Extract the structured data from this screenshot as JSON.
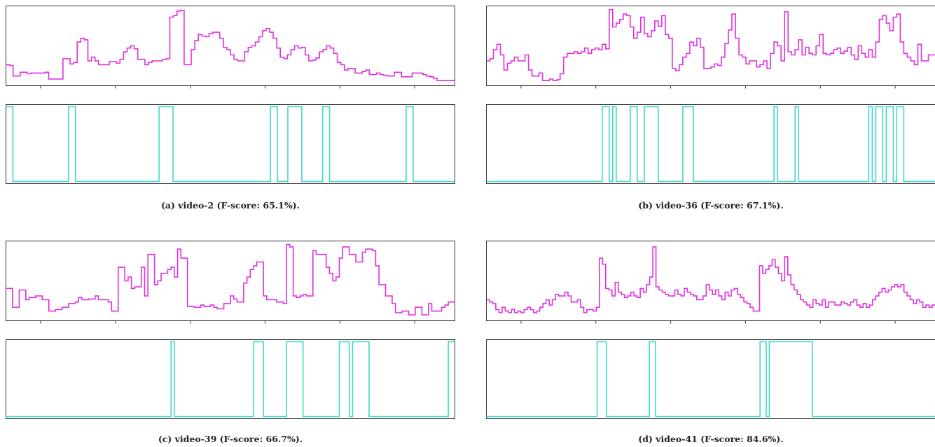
{
  "colors": {
    "score": "#e030e0",
    "summary": "#40d8c8",
    "axis": "#333333"
  },
  "chart_data": [
    {
      "type": "line",
      "caption": "(a) video-2 (F-score: 65.1%).",
      "series": [
        {
          "values": [
            0.25,
            0.24,
            0.1,
            0.1,
            0.15,
            0.15,
            0.13,
            0.14,
            0.14,
            0.14,
            0.14,
            0.15,
            0.06,
            0.06,
            0.06,
            0.06,
            0.33,
            0.33,
            0.26,
            0.28,
            0.55,
            0.6,
            0.58,
            0.3,
            0.35,
            0.3,
            0.25,
            0.25,
            0.25,
            0.29,
            0.29,
            0.27,
            0.32,
            0.42,
            0.47,
            0.5,
            0.46,
            0.32,
            0.32,
            0.25,
            0.28,
            0.3,
            0.3,
            0.3,
            0.32,
            0.33,
            0.88,
            0.9,
            0.96,
            0.97,
            0.25,
            0.25,
            0.45,
            0.57,
            0.65,
            0.63,
            0.62,
            0.66,
            0.68,
            0.68,
            0.6,
            0.48,
            0.45,
            0.38,
            0.32,
            0.3,
            0.3,
            0.42,
            0.48,
            0.5,
            0.55,
            0.62,
            0.7,
            0.73,
            0.68,
            0.6,
            0.47,
            0.35,
            0.33,
            0.38,
            0.45,
            0.5,
            0.47,
            0.48,
            0.38,
            0.3,
            0.31,
            0.34,
            0.42,
            0.45,
            0.5,
            0.47,
            0.4,
            0.28,
            0.25,
            0.18,
            0.2,
            0.2,
            0.14,
            0.14,
            0.16,
            0.18,
            0.12,
            0.12,
            0.14,
            0.12,
            0.11,
            0.1,
            0.1,
            0.15,
            0.15,
            0.09,
            0.09,
            0.09,
            0.14,
            0.14,
            0.14,
            0.12,
            0.1,
            0.09,
            0.07,
            0.04,
            0.04,
            0.04,
            0.04,
            0.04
          ]
        },
        {
          "values": [
            1,
            1,
            0,
            0,
            0,
            0,
            0,
            0,
            0,
            0,
            0,
            0,
            0,
            0,
            0,
            0,
            0,
            0,
            1,
            1,
            0,
            0,
            0,
            0,
            0,
            0,
            0,
            0,
            0,
            0,
            0,
            0,
            0,
            0,
            0,
            0,
            0,
            0,
            0,
            0,
            0,
            0,
            0,
            0,
            1,
            1,
            1,
            1,
            0,
            0,
            0,
            0,
            0,
            0,
            0,
            0,
            0,
            0,
            0,
            0,
            0,
            0,
            0,
            0,
            0,
            0,
            0,
            0,
            0,
            0,
            0,
            0,
            0,
            0,
            0,
            0,
            1,
            1,
            0,
            0,
            0,
            1,
            1,
            1,
            1,
            0,
            0,
            0,
            0,
            0,
            0,
            1,
            1,
            0,
            0,
            0,
            0,
            0,
            0,
            0,
            0,
            0,
            0,
            0,
            0,
            0,
            0,
            0,
            0,
            0,
            0,
            0,
            0,
            0,
            0,
            1,
            1,
            0,
            0,
            0,
            0,
            0,
            0,
            0,
            0,
            0,
            0,
            0,
            0
          ]
        }
      ]
    },
    {
      "type": "line",
      "caption": "(b) video-36 (F-score: 67.1%).",
      "series": [
        {
          "values": [
            0.3,
            0.33,
            0.45,
            0.52,
            0.38,
            0.18,
            0.27,
            0.3,
            0.35,
            0.3,
            0.3,
            0.38,
            0.18,
            0.1,
            0.1,
            0.14,
            0.04,
            0.04,
            0.06,
            0.04,
            0.05,
            0.13,
            0.35,
            0.4,
            0.4,
            0.42,
            0.4,
            0.42,
            0.47,
            0.4,
            0.45,
            0.47,
            0.45,
            0.52,
            0.46,
            0.98,
            0.75,
            0.8,
            0.85,
            0.92,
            0.9,
            0.75,
            0.6,
            0.68,
            0.88,
            0.66,
            0.62,
            0.7,
            0.83,
            0.76,
            0.9,
            0.65,
            0.6,
            0.2,
            0.17,
            0.25,
            0.35,
            0.4,
            0.55,
            0.5,
            0.6,
            0.48,
            0.2,
            0.2,
            0.22,
            0.26,
            0.24,
            0.35,
            0.53,
            0.71,
            0.92,
            0.6,
            0.38,
            0.35,
            0.26,
            0.3,
            0.3,
            0.22,
            0.25,
            0.3,
            0.2,
            0.4,
            0.55,
            0.5,
            0.3,
            0.95,
            0.42,
            0.38,
            0.45,
            0.58,
            0.38,
            0.48,
            0.4,
            0.38,
            0.5,
            0.65,
            0.4,
            0.38,
            0.4,
            0.45,
            0.47,
            0.4,
            0.43,
            0.48,
            0.38,
            0.32,
            0.5,
            0.4,
            0.35,
            0.45,
            0.35,
            0.55,
            0.85,
            0.9,
            0.8,
            0.7,
            0.88,
            0.92,
            0.55,
            0.4,
            0.35,
            0.3,
            0.25,
            0.52,
            0.3,
            0.3,
            0.38,
            0.38
          ]
        },
        {
          "values": [
            0,
            0,
            0,
            0,
            0,
            0,
            0,
            0,
            0,
            0,
            0,
            0,
            0,
            0,
            0,
            0,
            0,
            0,
            0,
            0,
            0,
            0,
            0,
            0,
            0,
            0,
            0,
            0,
            0,
            0,
            0,
            0,
            0,
            1,
            1,
            0,
            1,
            0,
            0,
            0,
            0,
            1,
            1,
            0,
            0,
            1,
            1,
            1,
            1,
            0,
            0,
            0,
            0,
            0,
            0,
            0,
            1,
            1,
            1,
            0,
            0,
            0,
            0,
            0,
            0,
            0,
            0,
            0,
            0,
            0,
            0,
            0,
            0,
            0,
            0,
            0,
            0,
            0,
            0,
            0,
            0,
            0,
            1,
            0,
            0,
            0,
            0,
            0,
            1,
            0,
            0,
            0,
            0,
            0,
            0,
            0,
            0,
            0,
            0,
            0,
            0,
            0,
            0,
            0,
            0,
            0,
            0,
            0,
            0,
            1,
            0,
            1,
            1,
            0,
            1,
            1,
            0,
            1,
            1,
            0,
            0,
            0,
            0,
            0,
            0,
            0,
            0,
            0
          ]
        }
      ]
    },
    {
      "type": "line",
      "caption": "(c) video-39 (F-score: 66.7%).",
      "series": [
        {
          "values": [
            0.4,
            0.4,
            0.15,
            0.15,
            0.38,
            0.38,
            0.25,
            0.28,
            0.28,
            0.3,
            0.3,
            0.25,
            0.25,
            0.1,
            0.1,
            0.12,
            0.12,
            0.15,
            0.15,
            0.2,
            0.2,
            0.22,
            0.28,
            0.25,
            0.25,
            0.26,
            0.26,
            0.3,
            0.25,
            0.25,
            0.25,
            0.22,
            0.1,
            0.1,
            0.68,
            0.68,
            0.5,
            0.55,
            0.4,
            0.42,
            0.42,
            0.68,
            0.3,
            0.85,
            0.85,
            0.45,
            0.5,
            0.6,
            0.6,
            0.65,
            0.68,
            0.55,
            0.92,
            0.8,
            0.8,
            0.16,
            0.16,
            0.15,
            0.15,
            0.18,
            0.16,
            0.16,
            0.18,
            0.15,
            0.13,
            0.13,
            0.2,
            0.2,
            0.3,
            0.26,
            0.22,
            0.22,
            0.47,
            0.55,
            0.65,
            0.7,
            0.75,
            0.75,
            0.3,
            0.25,
            0.25,
            0.25,
            0.22,
            0.22,
            0.2,
            0.98,
            0.95,
            0.3,
            0.28,
            0.3,
            0.32,
            0.3,
            0.3,
            0.9,
            0.85,
            0.85,
            0.85,
            0.68,
            0.6,
            0.5,
            0.55,
            0.8,
            0.95,
            0.95,
            0.85,
            0.85,
            0.75,
            0.75,
            0.88,
            0.92,
            0.92,
            0.9,
            0.7,
            0.45,
            0.45,
            0.3,
            0.3,
            0.2,
            0.08,
            0.08,
            0.1,
            0.1,
            0.05,
            0.05,
            0.15,
            0.15,
            0.05,
            0.05,
            0.2,
            0.1,
            0.1,
            0.1,
            0.15,
            0.18,
            0.22,
            0.22
          ]
        },
        {
          "values": [
            0,
            0,
            0,
            0,
            0,
            0,
            0,
            0,
            0,
            0,
            0,
            0,
            0,
            0,
            0,
            0,
            0,
            0,
            0,
            0,
            0,
            0,
            0,
            0,
            0,
            0,
            0,
            0,
            0,
            0,
            0,
            0,
            0,
            0,
            0,
            0,
            0,
            0,
            0,
            0,
            0,
            0,
            0,
            0,
            0,
            0,
            0,
            0,
            0,
            0,
            1,
            0,
            0,
            0,
            0,
            0,
            0,
            0,
            0,
            0,
            0,
            0,
            0,
            0,
            0,
            0,
            0,
            0,
            0,
            0,
            0,
            0,
            0,
            0,
            0,
            1,
            1,
            1,
            0,
            0,
            0,
            0,
            0,
            0,
            0,
            1,
            1,
            1,
            1,
            1,
            0,
            0,
            0,
            0,
            0,
            0,
            0,
            0,
            0,
            0,
            0,
            1,
            1,
            1,
            0,
            1,
            1,
            1,
            1,
            1,
            0,
            0,
            0,
            0,
            0,
            0,
            0,
            0,
            0,
            0,
            0,
            0,
            0,
            0,
            0,
            0,
            0,
            0,
            0,
            0,
            0,
            0,
            0,
            0,
            1,
            1
          ]
        }
      ]
    },
    {
      "type": "line",
      "caption": "(d) video-41 (F-score: 84.6%).",
      "series": [
        {
          "values": [
            0.25,
            0.22,
            0.2,
            0.12,
            0.08,
            0.15,
            0.1,
            0.08,
            0.12,
            0.08,
            0.1,
            0.08,
            0.12,
            0.15,
            0.12,
            0.08,
            0.1,
            0.15,
            0.2,
            0.25,
            0.18,
            0.25,
            0.32,
            0.3,
            0.3,
            0.35,
            0.3,
            0.22,
            0.22,
            0.25,
            0.15,
            0.08,
            0.12,
            0.12,
            0.1,
            0.15,
            0.8,
            0.72,
            0.4,
            0.38,
            0.3,
            0.48,
            0.35,
            0.32,
            0.28,
            0.3,
            0.35,
            0.3,
            0.28,
            0.4,
            0.35,
            0.45,
            0.55,
            0.95,
            0.42,
            0.38,
            0.35,
            0.32,
            0.3,
            0.3,
            0.38,
            0.32,
            0.3,
            0.4,
            0.35,
            0.32,
            0.3,
            0.25,
            0.25,
            0.3,
            0.45,
            0.38,
            0.32,
            0.38,
            0.3,
            0.25,
            0.35,
            0.3,
            0.38,
            0.4,
            0.32,
            0.28,
            0.22,
            0.2,
            0.15,
            0.1,
            0.1,
            0.7,
            0.6,
            0.65,
            0.7,
            0.78,
            0.68,
            0.6,
            0.5,
            0.82,
            0.58,
            0.45,
            0.38,
            0.32,
            0.25,
            0.22,
            0.18,
            0.15,
            0.25,
            0.2,
            0.18,
            0.25,
            0.15,
            0.22,
            0.22,
            0.18,
            0.18,
            0.22,
            0.2,
            0.18,
            0.22,
            0.25,
            0.18,
            0.15,
            0.2,
            0.15,
            0.18,
            0.25,
            0.3,
            0.35,
            0.4,
            0.35,
            0.38,
            0.42,
            0.45,
            0.42,
            0.45,
            0.35,
            0.3,
            0.25,
            0.2,
            0.25,
            0.22,
            0.15,
            0.18,
            0.15,
            0.18
          ]
        },
        {
          "values": [
            0,
            0,
            0,
            0,
            0,
            0,
            0,
            0,
            0,
            0,
            0,
            0,
            0,
            0,
            0,
            0,
            0,
            0,
            0,
            0,
            0,
            0,
            0,
            0,
            0,
            0,
            0,
            0,
            0,
            0,
            0,
            0,
            0,
            0,
            0,
            0,
            1,
            1,
            1,
            0,
            0,
            0,
            0,
            0,
            0,
            0,
            0,
            0,
            0,
            0,
            0,
            0,
            0,
            1,
            1,
            0,
            0,
            0,
            0,
            0,
            0,
            0,
            0,
            0,
            0,
            0,
            0,
            0,
            0,
            0,
            0,
            0,
            0,
            0,
            0,
            0,
            0,
            0,
            0,
            0,
            0,
            0,
            0,
            0,
            0,
            0,
            0,
            0,
            0,
            1,
            1,
            0,
            1,
            1,
            1,
            1,
            1,
            1,
            1,
            1,
            1,
            1,
            1,
            1,
            1,
            1,
            0,
            0,
            0,
            0,
            0,
            0,
            0,
            0,
            0,
            0,
            0,
            0,
            0,
            0,
            0,
            0,
            0,
            0,
            0,
            0,
            0,
            0,
            0,
            0,
            0,
            0,
            0,
            0,
            0,
            0,
            0,
            0,
            0,
            0,
            0,
            0,
            0,
            0,
            0,
            0
          ]
        }
      ]
    }
  ]
}
